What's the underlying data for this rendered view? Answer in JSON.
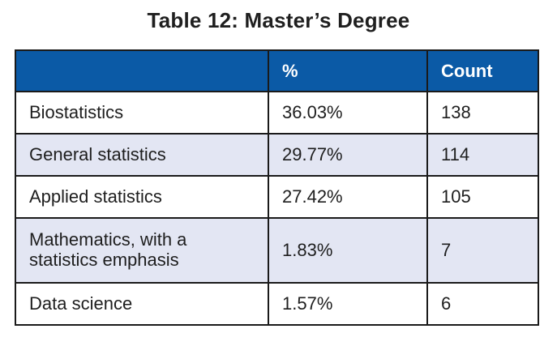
{
  "title": "Table 12: Master’s Degree",
  "table": {
    "headers": [
      "",
      "%",
      "Count"
    ],
    "rows": [
      {
        "label": "Biostatistics",
        "percent": "36.03%",
        "count": "138"
      },
      {
        "label": "General statistics",
        "percent": "29.77%",
        "count": "114"
      },
      {
        "label": "Applied statistics",
        "percent": "27.42%",
        "count": "105"
      },
      {
        "label": "Mathematics, with a statistics emphasis",
        "percent": "1.83%",
        "count": "7"
      },
      {
        "label": "Data science",
        "percent": "1.57%",
        "count": "6"
      }
    ]
  },
  "colors": {
    "header_bg": "#0b5aa6",
    "alt_row_bg": "#e3e6f3",
    "border": "#1a1a1a"
  }
}
